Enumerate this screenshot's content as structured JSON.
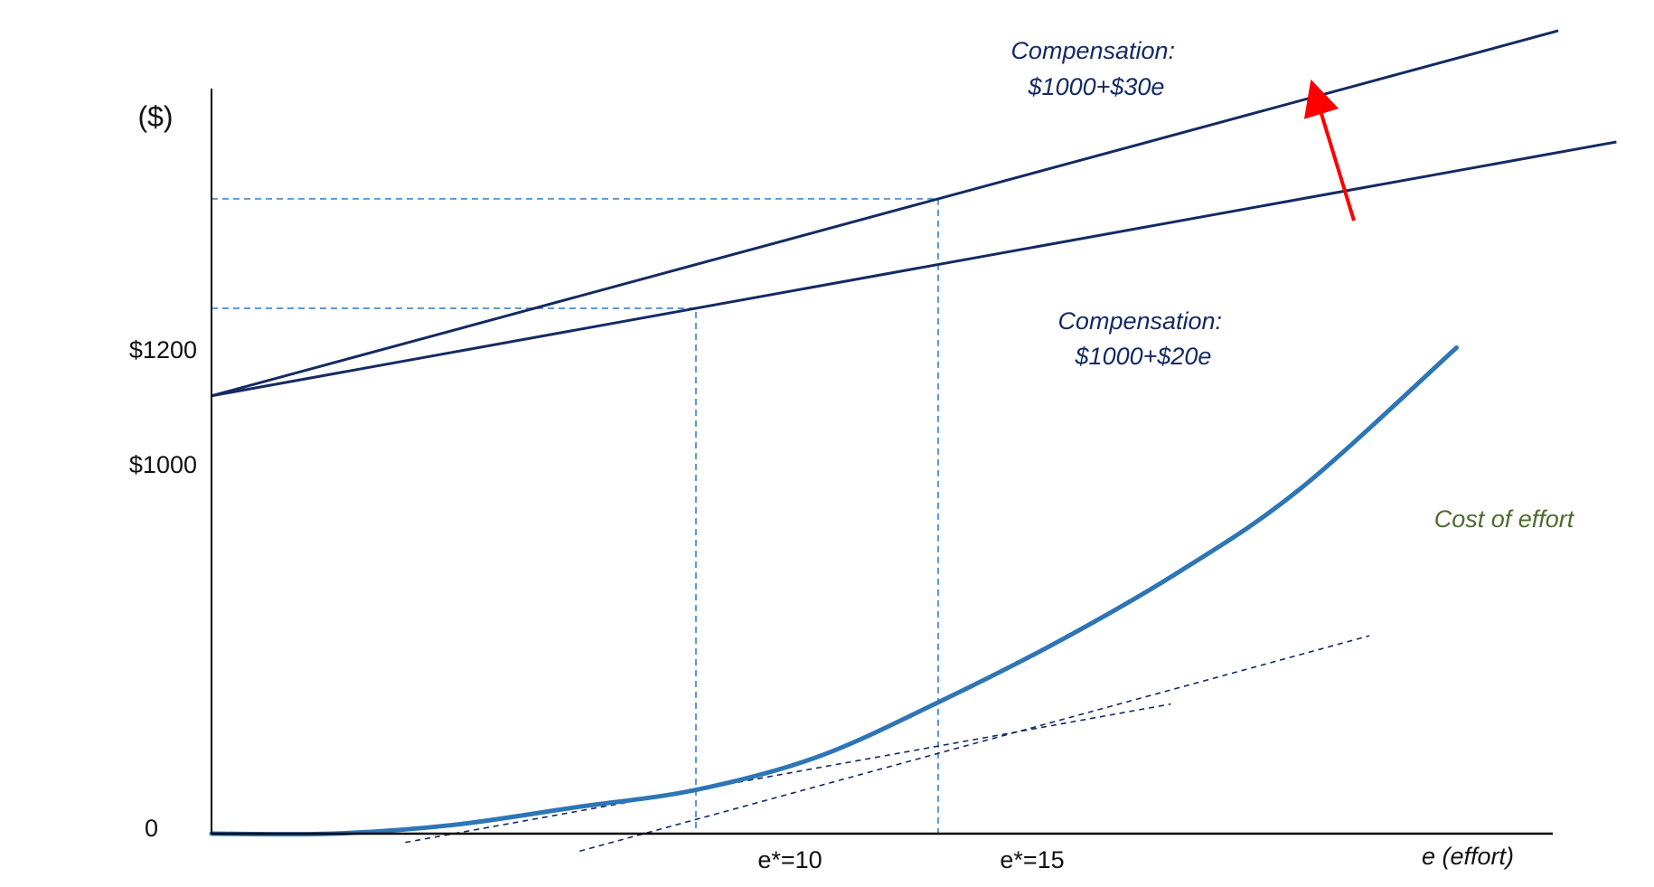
{
  "chart_data": {
    "type": "line",
    "title": "",
    "xlabel": "e (effort)",
    "ylabel": "($)",
    "xlim": [
      0,
      26
    ],
    "ylim": [
      0,
      1600
    ],
    "grid": false,
    "legend": "none",
    "y_ticks": [
      {
        "value": 0,
        "label": "0"
      },
      {
        "value": 1000,
        "label": "$1000"
      },
      {
        "value": 1200,
        "label": "$1200"
      }
    ],
    "x_ticks": [
      {
        "value": 10,
        "label": "e*=10"
      },
      {
        "value": 15,
        "label": "e*=15"
      }
    ],
    "series": [
      {
        "name": "Compensation: $1000+$20e",
        "color": "#142a63",
        "x": [
          0,
          29
        ],
        "y": [
          1000,
          1580
        ]
      },
      {
        "name": "Compensation: $1000+$30e",
        "color": "#142a63",
        "x": [
          0,
          27.8
        ],
        "y": [
          1000,
          1834
        ]
      },
      {
        "name": "Cost of effort",
        "color": "#2e75b6",
        "x": [
          0,
          2.5,
          5,
          7.5,
          10,
          12.5,
          15,
          17.5,
          20,
          22.5,
          25.7
        ],
        "y": [
          0,
          0,
          20,
          60,
          100,
          175,
          300,
          440,
          600,
          790,
          1110
        ]
      }
    ],
    "tangent_lines": [
      {
        "color": "#142a63",
        "x": [
          4,
          19.8
        ],
        "y": [
          -20,
          296
        ]
      },
      {
        "color": "#142a63",
        "x": [
          7.6,
          23.9
        ],
        "y": [
          -40,
          452
        ]
      }
    ],
    "guide_lines": [
      {
        "color": "#5b9bd5",
        "x": [
          0,
          10,
          10
        ],
        "y": [
          1200,
          1200,
          0
        ]
      },
      {
        "color": "#5b9bd5",
        "x": [
          0,
          15,
          15
        ],
        "y": [
          1450,
          1450,
          0
        ]
      }
    ],
    "annotations": [
      {
        "lines": [
          "Compensation:",
          "$1000+$30e"
        ],
        "color": "#142a63"
      },
      {
        "lines": [
          "Compensation:",
          "$1000+$20e"
        ],
        "color": "#142a63"
      },
      {
        "lines": [
          "Cost of effort"
        ],
        "color": "#4e6b30"
      }
    ],
    "shift_arrow_color": "#ff0000"
  }
}
